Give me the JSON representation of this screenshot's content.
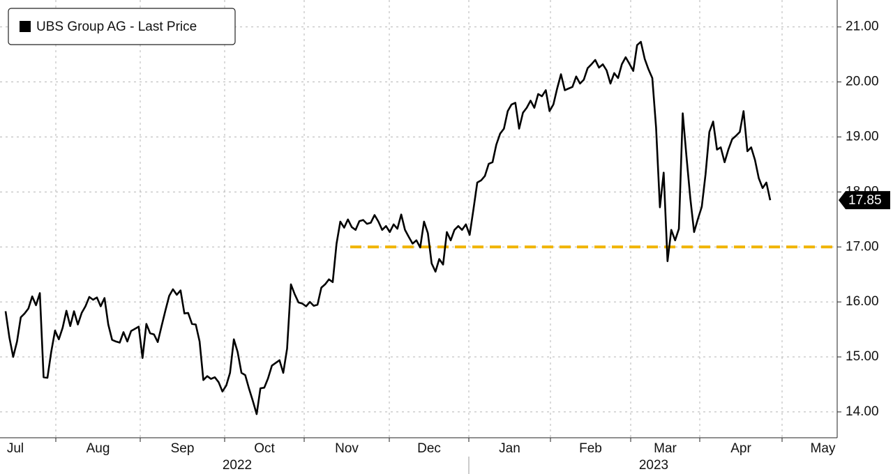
{
  "chart_data": {
    "type": "line",
    "months": [
      "Jul",
      "Aug",
      "Sep",
      "Oct",
      "Nov",
      "Dec",
      "Jan",
      "Feb",
      "Mar",
      "Apr",
      "May"
    ],
    "years": [
      "2022",
      "2023"
    ],
    "series": [
      {
        "name": "UBS Group AG - Last Price",
        "color": "#000000",
        "values": [
          15.83,
          15.35,
          15.0,
          15.28,
          15.72,
          15.79,
          15.88,
          16.1,
          15.94,
          16.16,
          14.63,
          14.62,
          15.09,
          15.48,
          15.32,
          15.53,
          15.84,
          15.56,
          15.83,
          15.59,
          15.8,
          15.92,
          16.09,
          16.04,
          16.08,
          15.92,
          16.07,
          15.59,
          15.31,
          15.28,
          15.26,
          15.45,
          15.28,
          15.47,
          15.51,
          15.55,
          14.98,
          15.6,
          15.43,
          15.41,
          15.27,
          15.56,
          15.84,
          16.11,
          16.23,
          16.13,
          16.21,
          15.79,
          15.8,
          15.6,
          15.59,
          15.28,
          14.58,
          14.65,
          14.6,
          14.63,
          14.54,
          14.37,
          14.48,
          14.71,
          15.32,
          15.09,
          14.71,
          14.67,
          14.42,
          14.2,
          13.96,
          14.43,
          14.44,
          14.61,
          14.84,
          14.89,
          14.94,
          14.71,
          15.15,
          16.32,
          16.14,
          15.99,
          15.97,
          15.92,
          16.0,
          15.93,
          15.95,
          16.26,
          16.32,
          16.41,
          16.36,
          17.06,
          17.46,
          17.35,
          17.5,
          17.36,
          17.31,
          17.47,
          17.49,
          17.42,
          17.44,
          17.58,
          17.46,
          17.31,
          17.38,
          17.27,
          17.41,
          17.33,
          17.59,
          17.31,
          17.18,
          17.06,
          17.12,
          16.99,
          17.46,
          17.25,
          16.7,
          16.55,
          16.78,
          16.68,
          17.27,
          17.12,
          17.31,
          17.38,
          17.31,
          17.41,
          17.22,
          17.69,
          18.17,
          18.21,
          18.29,
          18.51,
          18.54,
          18.86,
          19.06,
          19.15,
          19.47,
          19.59,
          19.62,
          19.15,
          19.44,
          19.53,
          19.66,
          19.53,
          19.78,
          19.74,
          19.85,
          19.47,
          19.59,
          19.88,
          20.14,
          19.85,
          19.88,
          19.91,
          20.1,
          19.97,
          20.04,
          20.25,
          20.32,
          20.4,
          20.26,
          20.32,
          20.21,
          19.97,
          20.16,
          20.07,
          20.32,
          20.45,
          20.33,
          20.2,
          20.67,
          20.73,
          20.42,
          20.23,
          20.07,
          19.17,
          17.72,
          18.35,
          16.74,
          17.31,
          17.12,
          17.33,
          19.43,
          18.64,
          17.88,
          17.27,
          17.51,
          17.73,
          18.32,
          19.09,
          19.28,
          18.77,
          18.81,
          18.54,
          18.77,
          18.96,
          19.02,
          19.09,
          19.47,
          18.74,
          18.81,
          18.58,
          18.25,
          18.07,
          18.17,
          17.85
        ]
      }
    ],
    "last_value": 17.85,
    "hline": {
      "value": 17,
      "color": "#f0b400"
    },
    "ylim": [
      13.53,
      21.49
    ],
    "yticks": [
      {
        "value": 14,
        "label": "14.00"
      },
      {
        "value": 15,
        "label": "15.00"
      },
      {
        "value": 16,
        "label": "16.00"
      },
      {
        "value": 17,
        "label": "17.00"
      },
      {
        "value": 18,
        "label": "18.00"
      },
      {
        "value": 19,
        "label": "19.00"
      },
      {
        "value": 20,
        "label": "20.00"
      },
      {
        "value": 21,
        "label": "21.00"
      }
    ],
    "grid": true
  }
}
